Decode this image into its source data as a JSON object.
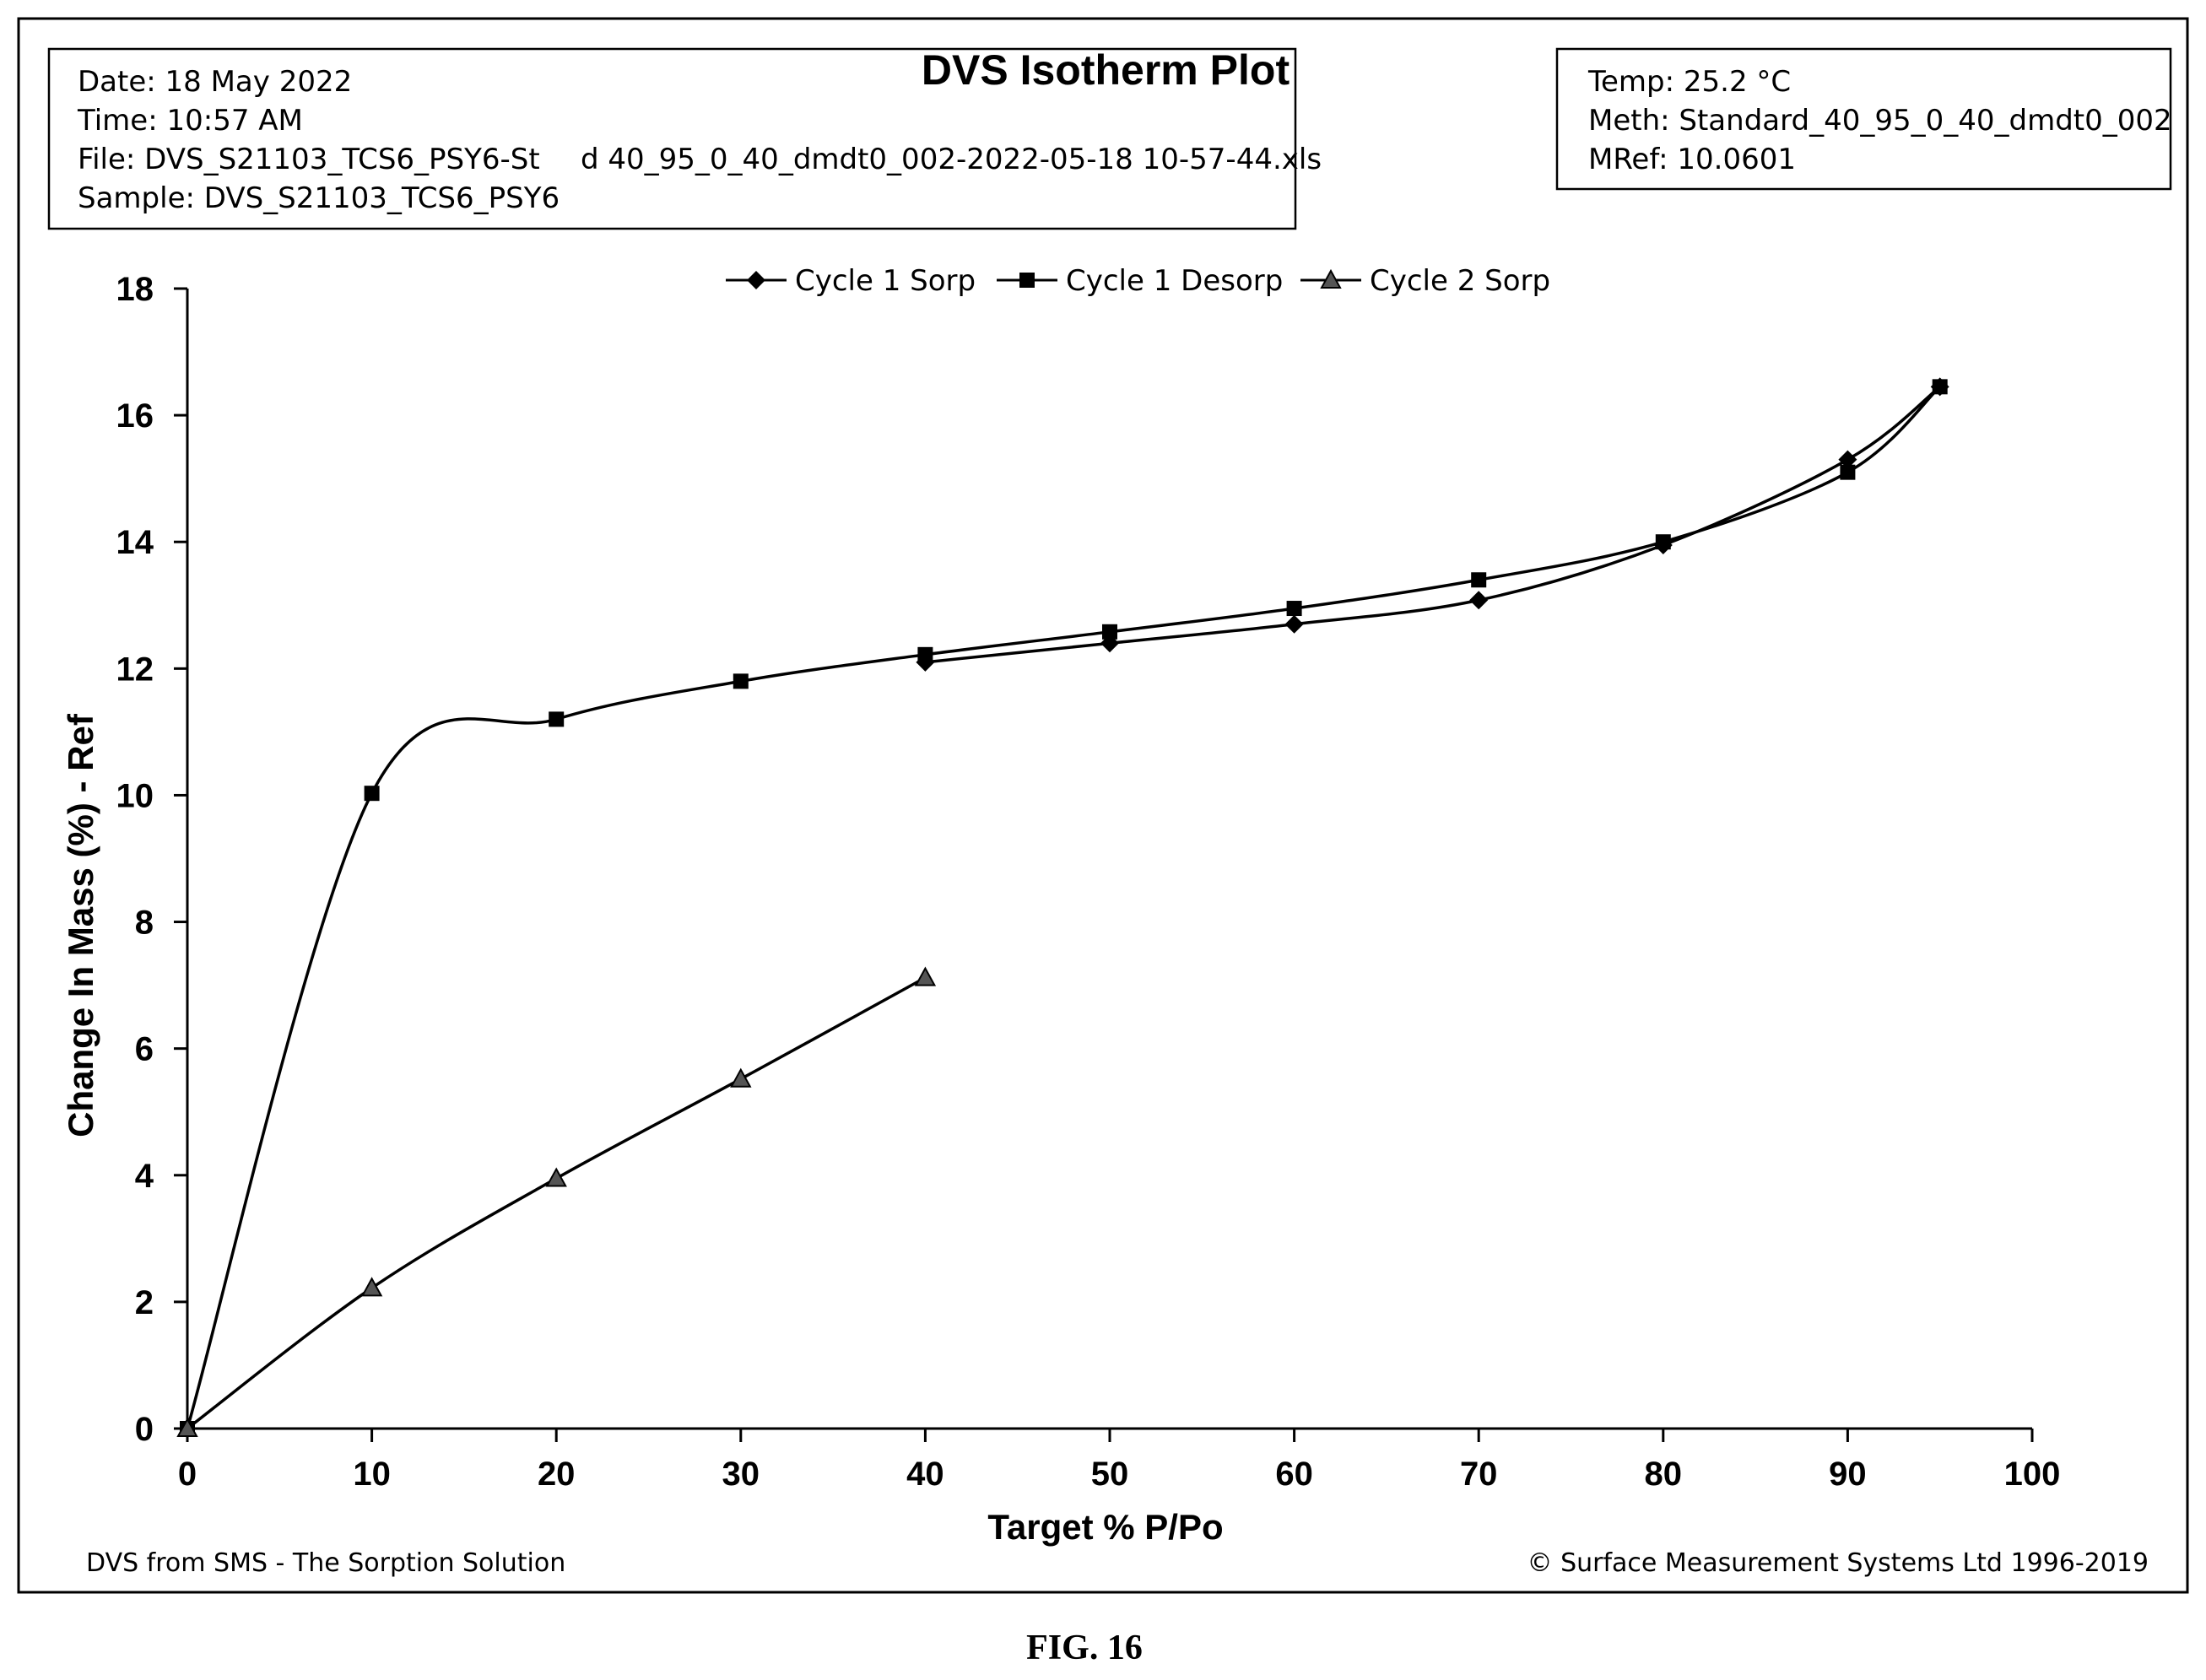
{
  "info_left": {
    "date": "Date:  18 May 2022",
    "time": "Time:  10:57 AM",
    "file_a": "File:  DVS_S21103_TCS6_PSY6-St",
    "file_b": "d  40_95_0_40_dmdt0_002-2022-05-18 10-57-44.xls",
    "sample": "Sample:  DVS_S21103_TCS6_PSY6"
  },
  "info_right": {
    "temp": "Temp:  25.2 °C",
    "meth": "Meth:  Standard_40_95_0_40_dmdt0_002",
    "mref": "MRef:  10.0601"
  },
  "footer": {
    "left": "DVS from SMS - The Sorption Solution",
    "right": "© Surface Measurement Systems Ltd 1996-2019"
  },
  "figure_label": "FIG. 16",
  "chart_data": {
    "type": "line",
    "title": "DVS Isotherm Plot",
    "xlabel": "Target %  P/Po",
    "ylabel": "Change In Mass (%)  - Ref",
    "xlim": [
      0,
      100
    ],
    "ylim": [
      0,
      18
    ],
    "xticks": [
      0,
      10,
      20,
      30,
      40,
      50,
      60,
      70,
      80,
      90,
      100
    ],
    "yticks": [
      0,
      2,
      4,
      6,
      8,
      10,
      12,
      14,
      16,
      18
    ],
    "grid": false,
    "legend_position": "top-center",
    "series": [
      {
        "name": "Cycle 1 Sorp",
        "marker": "diamond",
        "color": "#000000",
        "x": [
          40,
          50,
          60,
          70,
          80,
          90,
          95
        ],
        "y": [
          12.1,
          12.4,
          12.7,
          13.08,
          13.95,
          15.3,
          16.45
        ]
      },
      {
        "name": "Cycle 1 Desorp",
        "marker": "square",
        "color": "#000000",
        "x": [
          95,
          90,
          80,
          70,
          60,
          50,
          40,
          30,
          20,
          10,
          0
        ],
        "y": [
          16.45,
          15.1,
          14.0,
          13.4,
          12.95,
          12.58,
          12.22,
          11.8,
          11.2,
          10.03,
          0
        ]
      },
      {
        "name": "Cycle 2 Sorp",
        "marker": "triangle",
        "color": "#000000",
        "x": [
          0,
          10,
          20,
          30,
          40
        ],
        "y": [
          0,
          2.22,
          3.95,
          5.52,
          7.12
        ]
      }
    ]
  }
}
